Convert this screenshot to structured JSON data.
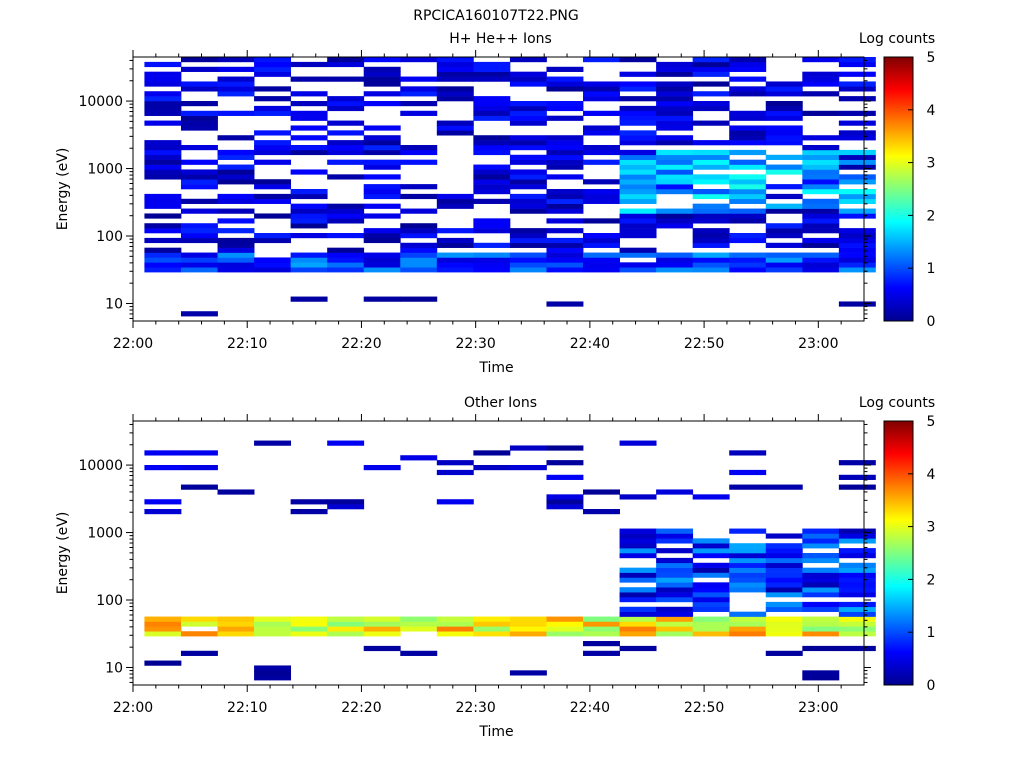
{
  "figure_title": "RPCICA160107T22.PNG",
  "chart_data": [
    {
      "type": "heatmap",
      "title": "H+ He++ Ions",
      "xlabel": "Time",
      "ylabel": "Energy (eV)",
      "x_ticks": [
        "22:00",
        "22:10",
        "22:20",
        "22:30",
        "22:40",
        "22:50",
        "23:00"
      ],
      "x_range_minutes": [
        0,
        64
      ],
      "y_scale": "log",
      "y_range_ev": [
        5.5,
        45000
      ],
      "y_ticks": [
        "10",
        "100",
        "1000",
        "10000"
      ],
      "colorbar": {
        "label": "Log counts",
        "range": [
          0,
          5
        ],
        "ticks": [
          "0",
          "1",
          "2",
          "3",
          "4",
          "5"
        ]
      },
      "time_bins_minutes": [
        1.0,
        4.2,
        7.4,
        10.6,
        13.8,
        17.0,
        20.2,
        23.4,
        26.6,
        29.8,
        33.0,
        36.2,
        39.4,
        42.6,
        45.8,
        49.0,
        52.2,
        55.4,
        58.6,
        61.8
      ],
      "features": [
        {
          "name": "low-energy band",
          "energy_ev": [
            28,
            58
          ],
          "log_counts": [
            0.4,
            1.5
          ]
        },
        {
          "name": "mid-energy population",
          "energy_ev": [
            60,
            45000
          ],
          "log_counts": [
            0.1,
            0.8
          ]
        },
        {
          "name": "enhanced flux after 22:43",
          "energy_ev": [
            200,
            2000
          ],
          "log_counts": [
            1.0,
            2.0
          ]
        },
        {
          "name": "sparse lowest-energy counts",
          "energy_ev": [
            6,
            12
          ],
          "log_counts": [
            0.1,
            0.2
          ]
        }
      ]
    },
    {
      "type": "heatmap",
      "title": "Other Ions",
      "xlabel": "Time",
      "ylabel": "Energy (eV)",
      "x_ticks": [
        "22:00",
        "22:10",
        "22:20",
        "22:30",
        "22:40",
        "22:50",
        "23:00"
      ],
      "x_range_minutes": [
        0,
        64
      ],
      "y_scale": "log",
      "y_range_ev": [
        5.5,
        45000
      ],
      "y_ticks": [
        "10",
        "100",
        "1000",
        "10000"
      ],
      "colorbar": {
        "label": "Log counts",
        "range": [
          0,
          5
        ],
        "ticks": [
          "0",
          "1",
          "2",
          "3",
          "4",
          "5"
        ]
      },
      "time_bins_minutes": [
        1.0,
        4.2,
        7.4,
        10.6,
        13.8,
        17.0,
        20.2,
        23.4,
        26.6,
        29.8,
        33.0,
        36.2,
        39.4,
        42.6,
        45.8,
        49.0,
        52.2,
        55.4,
        58.6,
        61.8
      ],
      "features": [
        {
          "name": "intense band",
          "energy_ev": [
            28,
            55
          ],
          "log_counts": [
            2.5,
            3.8
          ]
        },
        {
          "name": "enhanced flux after 22:43",
          "energy_ev": [
            60,
            1100
          ],
          "log_counts": [
            0.2,
            1.5
          ]
        },
        {
          "name": "sparse high-energy counts",
          "energy_ev": [
            2000,
            23000
          ],
          "log_counts": [
            0.1,
            0.6
          ]
        },
        {
          "name": "sparse lowest-energy counts",
          "energy_ev": [
            6,
            25
          ],
          "log_counts": [
            0.1,
            0.2
          ]
        }
      ]
    }
  ]
}
